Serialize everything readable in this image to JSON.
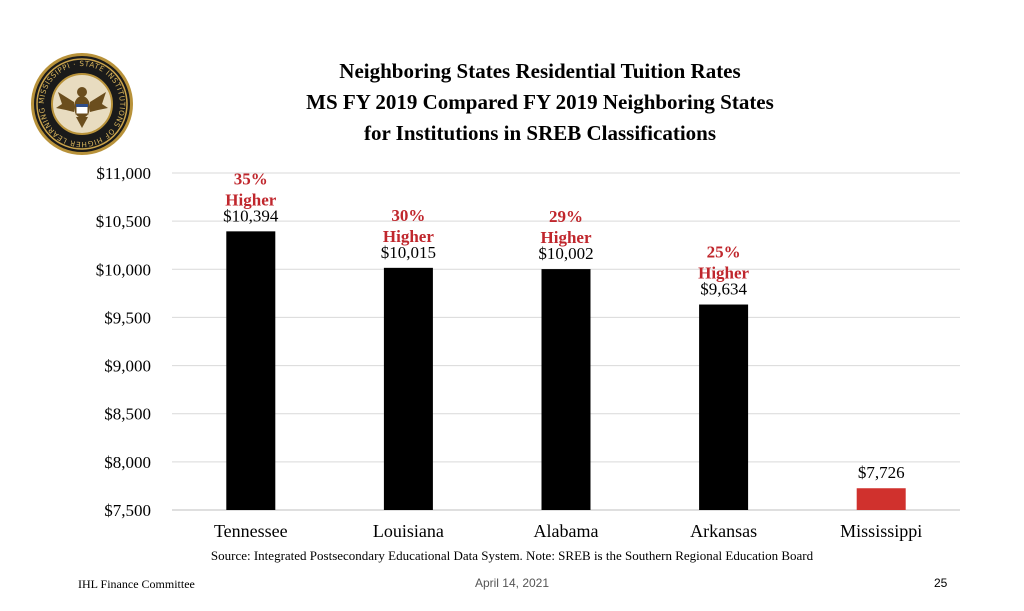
{
  "title": {
    "line1": "Neighboring States Residential Tuition Rates",
    "line2": "MS FY 2019 Compared FY 2019 Neighboring States",
    "line3": "for Institutions in SREB Classifications"
  },
  "seal": {
    "top_text": "MISSISSIPPI",
    "ring_text": "STATE INSTITUTIONS OF HIGHER LEARNING",
    "icon": "eagle-seal"
  },
  "chart_data": {
    "type": "bar",
    "categories": [
      "Tennessee",
      "Louisiana",
      "Alabama",
      "Arkansas",
      "Mississippi"
    ],
    "values": [
      10394,
      10015,
      10002,
      9634,
      7726
    ],
    "value_labels": [
      "$10,394",
      "$10,015",
      "$10,002",
      "$9,634",
      "$7,726"
    ],
    "annotations": [
      {
        "percent": "35%",
        "word": "Higher"
      },
      {
        "percent": "30%",
        "word": "Higher"
      },
      {
        "percent": "29%",
        "word": "Higher"
      },
      {
        "percent": "25%",
        "word": "Higher"
      },
      null
    ],
    "bar_colors": [
      "#000000",
      "#000000",
      "#000000",
      "#000000",
      "#d0312d"
    ],
    "annotation_color": "#c0272d",
    "ylim": [
      7500,
      11000
    ],
    "yticks": [
      7500,
      8000,
      8500,
      9000,
      9500,
      10000,
      10500,
      11000
    ],
    "ytick_labels": [
      "$7,500",
      "$8,000",
      "$8,500",
      "$9,000",
      "$9,500",
      "$10,000",
      "$10,500",
      "$11,000"
    ],
    "grid": true,
    "xlabel": "",
    "ylabel": ""
  },
  "source": "Source: Integrated Postsecondary Educational Data System. Note: SREB is the Southern Regional Education Board",
  "footer": {
    "left": "IHL Finance Committee",
    "center": "April 14, 2021",
    "right": "25"
  }
}
